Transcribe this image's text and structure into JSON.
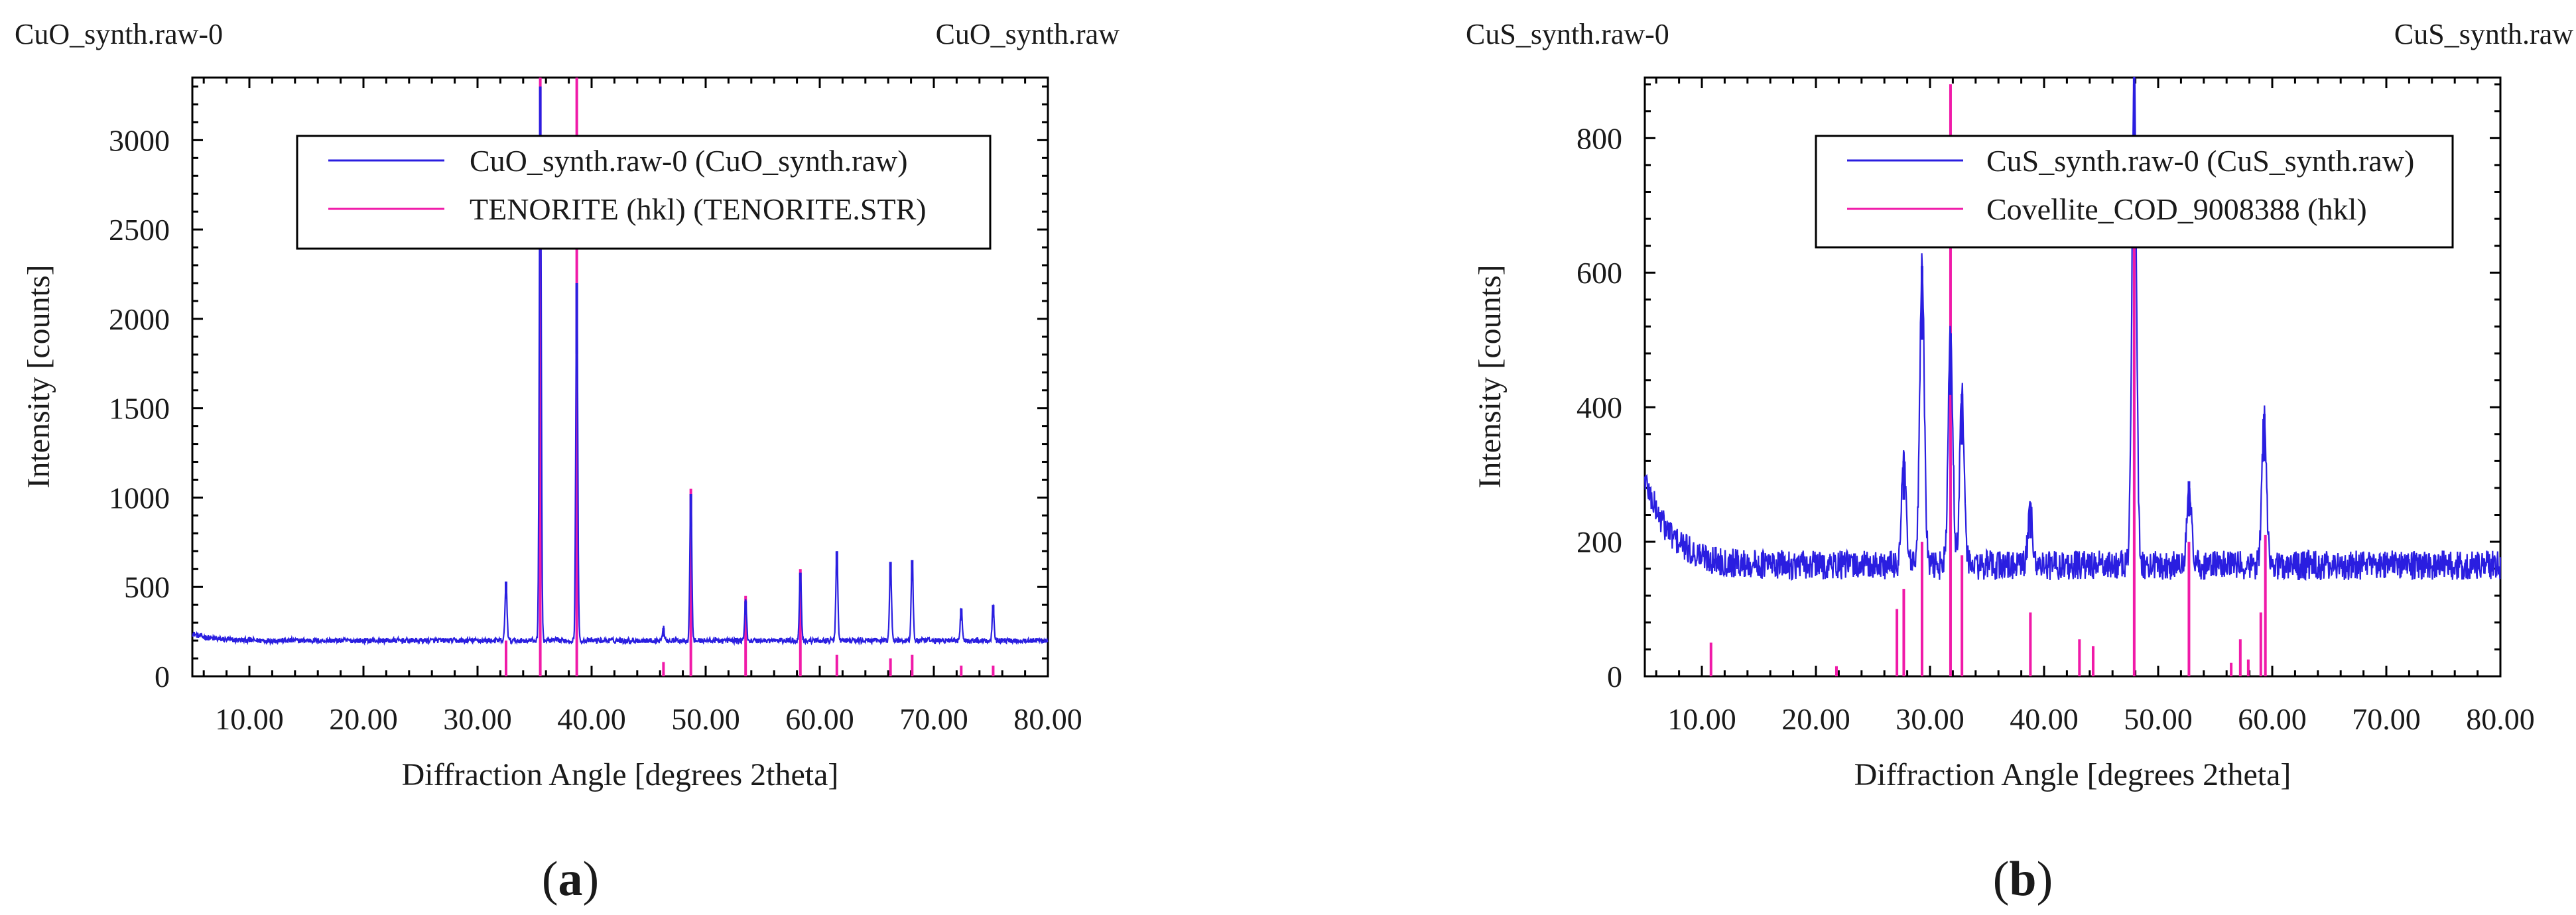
{
  "chart_data": [
    {
      "type": "line",
      "panel_label": "a",
      "corner_left": "CuO_synth.raw-0",
      "corner_right": "CuO_synth.raw",
      "xlabel": "Diffraction Angle [degrees 2theta]",
      "ylabel": "Intensity [counts]",
      "xlim": [
        5,
        80
      ],
      "ylim": [
        0,
        3350
      ],
      "xticks": [
        10,
        20,
        30,
        40,
        50,
        60,
        70,
        80
      ],
      "xtick_labels": [
        "10.00",
        "20.00",
        "30.00",
        "40.00",
        "50.00",
        "60.00",
        "70.00",
        "80.00"
      ],
      "yticks": [
        0,
        500,
        1000,
        1500,
        2000,
        2500,
        3000
      ],
      "ytick_labels": [
        "0",
        "500",
        "1000",
        "1500",
        "2000",
        "2500",
        "3000"
      ],
      "legend": [
        {
          "label": "CuO_synth.raw-0 (CuO_synth.raw)",
          "color": "#2a1ee0"
        },
        {
          "label": "TENORITE (hkl) (TENORITE.STR)",
          "color": "#f01aa8"
        }
      ],
      "legend_position": "top-right",
      "baseline": 200,
      "noise": 15,
      "peaks": [
        {
          "x": 32.5,
          "y": 530
        },
        {
          "x": 35.5,
          "y": 3300
        },
        {
          "x": 38.7,
          "y": 2200
        },
        {
          "x": 46.3,
          "y": 270
        },
        {
          "x": 48.7,
          "y": 1020
        },
        {
          "x": 53.5,
          "y": 420
        },
        {
          "x": 58.3,
          "y": 580
        },
        {
          "x": 61.5,
          "y": 700
        },
        {
          "x": 66.2,
          "y": 640
        },
        {
          "x": 68.1,
          "y": 650
        },
        {
          "x": 72.4,
          "y": 380
        },
        {
          "x": 75.2,
          "y": 400
        }
      ],
      "reference_lines": [
        {
          "x": 32.5,
          "y": 200
        },
        {
          "x": 35.5,
          "y": 3350
        },
        {
          "x": 38.7,
          "y": 3350
        },
        {
          "x": 46.3,
          "y": 80
        },
        {
          "x": 48.7,
          "y": 1050
        },
        {
          "x": 53.5,
          "y": 450
        },
        {
          "x": 58.3,
          "y": 600
        },
        {
          "x": 61.5,
          "y": 120
        },
        {
          "x": 66.2,
          "y": 100
        },
        {
          "x": 68.1,
          "y": 120
        },
        {
          "x": 72.4,
          "y": 60
        },
        {
          "x": 75.2,
          "y": 60
        }
      ]
    },
    {
      "type": "line",
      "panel_label": "b",
      "corner_left": "CuS_synth.raw-0",
      "corner_right": "CuS_synth.raw",
      "xlabel": "Diffraction Angle [degrees 2theta]",
      "ylabel": "Intensity [counts]",
      "xlim": [
        5,
        80
      ],
      "ylim": [
        0,
        890
      ],
      "xticks": [
        10,
        20,
        30,
        40,
        50,
        60,
        70,
        80
      ],
      "xtick_labels": [
        "10.00",
        "20.00",
        "30.00",
        "40.00",
        "50.00",
        "60.00",
        "70.00",
        "80.00"
      ],
      "yticks": [
        0,
        200,
        400,
        600,
        800
      ],
      "ytick_labels": [
        "0",
        "200",
        "400",
        "600",
        "800"
      ],
      "legend": [
        {
          "label": "CuS_synth.raw-0 (CuS_synth.raw)",
          "color": "#2a1ee0"
        },
        {
          "label": "Covellite_COD_9008388 (hkl)",
          "color": "#f01aa8"
        }
      ],
      "legend_position": "top-right",
      "baseline": 165,
      "noise": 22,
      "peaks": [
        {
          "x": 27.7,
          "y": 320
        },
        {
          "x": 29.3,
          "y": 610
        },
        {
          "x": 31.8,
          "y": 510
        },
        {
          "x": 32.8,
          "y": 420
        },
        {
          "x": 38.8,
          "y": 250
        },
        {
          "x": 47.9,
          "y": 890
        },
        {
          "x": 52.7,
          "y": 290
        },
        {
          "x": 59.3,
          "y": 390
        }
      ],
      "reference_lines": [
        {
          "x": 10.8,
          "y": 50
        },
        {
          "x": 21.8,
          "y": 15
        },
        {
          "x": 27.1,
          "y": 100
        },
        {
          "x": 27.7,
          "y": 130
        },
        {
          "x": 29.3,
          "y": 200
        },
        {
          "x": 31.8,
          "y": 880
        },
        {
          "x": 32.8,
          "y": 180
        },
        {
          "x": 38.8,
          "y": 95
        },
        {
          "x": 43.1,
          "y": 55
        },
        {
          "x": 44.3,
          "y": 45
        },
        {
          "x": 47.9,
          "y": 880
        },
        {
          "x": 52.7,
          "y": 200
        },
        {
          "x": 56.4,
          "y": 20
        },
        {
          "x": 57.2,
          "y": 55
        },
        {
          "x": 57.9,
          "y": 25
        },
        {
          "x": 59.0,
          "y": 95
        },
        {
          "x": 59.4,
          "y": 210
        }
      ]
    }
  ]
}
